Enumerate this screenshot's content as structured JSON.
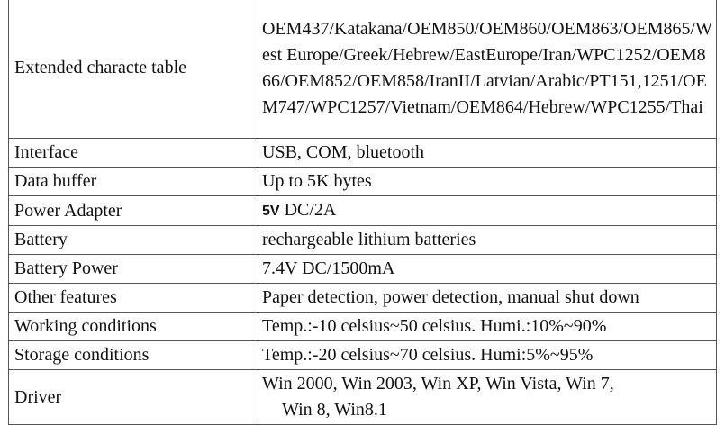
{
  "rows": [
    {
      "label": "Extended characte table",
      "value": "OEM437/Katakana/OEM850/OEM860/OEM863/OEM865/West Europe/Greek/Hebrew/EastEurope/Iran/WPC1252/OEM866/OEM852/OEM858/IranII/Latvian/Arabic/PT151,1251/OEM747/WPC1257/Vietnam/OEM864/Hebrew/WPC1255/Thai"
    },
    {
      "label": "Interface",
      "value": "USB, COM, bluetooth"
    },
    {
      "label": "Data buffer",
      "value": "Up to 5K bytes"
    },
    {
      "label": "Power Adapter",
      "value_bold": "5V",
      "value": "DC/2A"
    },
    {
      "label": "Battery",
      "value": "rechargeable lithium batteries"
    },
    {
      "label": "Battery Power",
      "value": "7.4V DC/1500mA"
    },
    {
      "label": "Other features",
      "value": "Paper detection, power detection, manual shut down"
    },
    {
      "label": "Working conditions",
      "value": "Temp.:-10 celsius~50 celsius. Humi.:10%~90%"
    },
    {
      "label": "Storage conditions",
      "value": "Temp.:-20 celsius~70 celsius. Humi:5%~95%"
    },
    {
      "label": "Driver",
      "value": "Win 2000, Win 2003, Win XP, Win Vista, Win 7,",
      "value_line2": "Win 8, Win8.1"
    }
  ]
}
